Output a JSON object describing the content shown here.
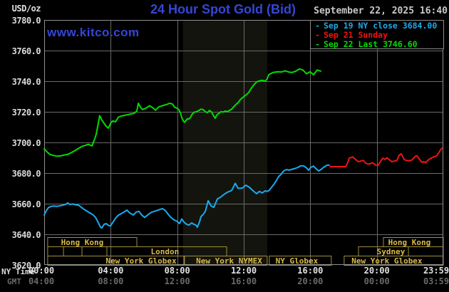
{
  "header": {
    "units_label": "USD/oz",
    "title": "24 Hour Spot Gold (Bid)",
    "datetime": "September 22, 2025 16:40",
    "watermark": "www.kitco.com"
  },
  "chart_data": {
    "type": "line",
    "title": "24 Hour Spot Gold (Bid)",
    "colors": {
      "band": "#14140e",
      "grid": "#696969",
      "frame": "#909090",
      "session_border": "#a08e38",
      "session_text": "#d8ba4a"
    },
    "y_axis": {
      "unit": "USD/oz",
      "min": 3620,
      "max": 3780,
      "step": 20,
      "tick_labels": [
        "3780.0",
        "3760.0",
        "3740.0",
        "3720.0",
        "3700.0",
        "3680.0",
        "3660.0",
        "3640.0",
        "3620.0"
      ]
    },
    "x_axis": {
      "label_row1": "NY Time",
      "label_row2": "GMT",
      "hours_range": [
        0,
        24
      ],
      "ticks_ny": [
        "00:00",
        "04:00",
        "08:00",
        "12:00",
        "16:00",
        "20:00",
        "23:59"
      ],
      "ticks_gmt": [
        "04:00",
        "08:00",
        "12:00",
        "16:00",
        "20:00",
        "00:00",
        "03:59"
      ]
    },
    "highlight_band_hours": [
      8.35,
      13.41
    ],
    "sessions": [
      {
        "row": 1,
        "start": 0.21,
        "end": 5.57,
        "label": "Hong Kong",
        "label_center": 2.29
      },
      {
        "row": 1,
        "start": 20.4,
        "end": 24,
        "label": "Hong Kong",
        "label_center": 21.96
      },
      {
        "row": 2,
        "start": 0.21,
        "end": 10.97,
        "label": "London",
        "label_center": 7.26,
        "dividers": [
          1.16,
          2.27,
          3.77
        ]
      },
      {
        "row": 2,
        "start": 18.9,
        "end": 24,
        "label": "Sydney",
        "label_center": 20.85,
        "dividers": [
          21.9
        ]
      },
      {
        "row": 3,
        "start": 0.21,
        "end": 8.4,
        "label": "New York Globex",
        "label_center": 5.83
      },
      {
        "row": 3,
        "start": 8.44,
        "end": 13.41,
        "label": "New York NYMEX",
        "label_center": 11.12
      },
      {
        "row": 3,
        "start": 13.54,
        "end": 17.27,
        "label": "NY Globex",
        "label_center": 15.19
      },
      {
        "row": 3,
        "start": 18.04,
        "end": 24,
        "label": "New York Globex",
        "label_center": 20.61
      }
    ],
    "series": [
      {
        "id": "sep19",
        "name": "Sep 19 NY close 3684.00",
        "color": "#1aaaee",
        "points": [
          [
            0,
            3652.6
          ],
          [
            0.13,
            3655.5
          ],
          [
            0.26,
            3657.5
          ],
          [
            0.43,
            3658.3
          ],
          [
            0.6,
            3658.5
          ],
          [
            0.77,
            3658.3
          ],
          [
            0.94,
            3658.6
          ],
          [
            1.11,
            3659
          ],
          [
            1.29,
            3659.6
          ],
          [
            1.41,
            3660.5
          ],
          [
            1.54,
            3659.5
          ],
          [
            1.71,
            3659.8
          ],
          [
            1.89,
            3659.3
          ],
          [
            2.06,
            3659
          ],
          [
            2.23,
            3657.7
          ],
          [
            2.4,
            3656.3
          ],
          [
            2.57,
            3655.1
          ],
          [
            2.74,
            3654
          ],
          [
            2.91,
            3653
          ],
          [
            3.09,
            3651
          ],
          [
            3.26,
            3647.5
          ],
          [
            3.39,
            3644.5
          ],
          [
            3.47,
            3644.2
          ],
          [
            3.6,
            3646.5
          ],
          [
            3.73,
            3647
          ],
          [
            3.86,
            3645.8
          ],
          [
            3.99,
            3645.5
          ],
          [
            4.11,
            3647.5
          ],
          [
            4.29,
            3650.5
          ],
          [
            4.46,
            3652.5
          ],
          [
            4.63,
            3653.5
          ],
          [
            4.8,
            3654.5
          ],
          [
            4.97,
            3655.8
          ],
          [
            5.14,
            3654
          ],
          [
            5.36,
            3652.6
          ],
          [
            5.53,
            3654.5
          ],
          [
            5.7,
            3655
          ],
          [
            5.87,
            3652.5
          ],
          [
            6.04,
            3651
          ],
          [
            6.26,
            3653
          ],
          [
            6.47,
            3654.5
          ],
          [
            6.69,
            3655.2
          ],
          [
            6.9,
            3656
          ],
          [
            7.11,
            3656.8
          ],
          [
            7.29,
            3655.5
          ],
          [
            7.46,
            3653
          ],
          [
            7.63,
            3650.9
          ],
          [
            7.8,
            3649.5
          ],
          [
            7.97,
            3648.6
          ],
          [
            8.14,
            3647
          ],
          [
            8.27,
            3650
          ],
          [
            8.4,
            3648
          ],
          [
            8.57,
            3646.5
          ],
          [
            8.7,
            3646
          ],
          [
            8.87,
            3647.5
          ],
          [
            9,
            3646.5
          ],
          [
            9.13,
            3646
          ],
          [
            9.21,
            3644.6
          ],
          [
            9.34,
            3648
          ],
          [
            9.43,
            3651.6
          ],
          [
            9.56,
            3653
          ],
          [
            9.69,
            3655
          ],
          [
            9.86,
            3662
          ],
          [
            10.03,
            3658.6
          ],
          [
            10.2,
            3657.6
          ],
          [
            10.41,
            3663
          ],
          [
            10.63,
            3664.4
          ],
          [
            10.84,
            3666.3
          ],
          [
            11.06,
            3667.7
          ],
          [
            11.27,
            3668.6
          ],
          [
            11.49,
            3673.3
          ],
          [
            11.66,
            3670
          ],
          [
            11.91,
            3670.2
          ],
          [
            12.13,
            3672.1
          ],
          [
            12.34,
            3670.7
          ],
          [
            12.56,
            3668.4
          ],
          [
            12.77,
            3666.5
          ],
          [
            12.94,
            3668
          ],
          [
            13.11,
            3667
          ],
          [
            13.29,
            3668.4
          ],
          [
            13.41,
            3668
          ],
          [
            13.54,
            3668.8
          ],
          [
            13.71,
            3671.2
          ],
          [
            13.84,
            3673
          ],
          [
            13.97,
            3675.3
          ],
          [
            14.1,
            3677.7
          ],
          [
            14.23,
            3679
          ],
          [
            14.4,
            3681.4
          ],
          [
            14.57,
            3682.3
          ],
          [
            14.74,
            3681.9
          ],
          [
            14.91,
            3682.5
          ],
          [
            15.09,
            3683
          ],
          [
            15.26,
            3683.7
          ],
          [
            15.43,
            3684.7
          ],
          [
            15.6,
            3684.7
          ],
          [
            15.77,
            3683.4
          ],
          [
            15.9,
            3681.9
          ],
          [
            16.03,
            3683.7
          ],
          [
            16.2,
            3684.5
          ],
          [
            16.33,
            3683
          ],
          [
            16.5,
            3681.4
          ],
          [
            16.63,
            3682.2
          ],
          [
            16.8,
            3683.7
          ],
          [
            16.97,
            3685
          ],
          [
            17.14,
            3685.2
          ]
        ]
      },
      {
        "id": "sep21",
        "name": "Sep 21 Sunday",
        "color": "#ee1515",
        "points": [
          [
            17.19,
            3684.2
          ],
          [
            18.13,
            3684.2
          ],
          [
            18.26,
            3687
          ],
          [
            18.34,
            3689.7
          ],
          [
            18.56,
            3690.5
          ],
          [
            18.73,
            3688.8
          ],
          [
            18.9,
            3687.4
          ],
          [
            19.07,
            3688
          ],
          [
            19.2,
            3688.2
          ],
          [
            19.33,
            3686.5
          ],
          [
            19.5,
            3685.8
          ],
          [
            19.63,
            3686.3
          ],
          [
            19.76,
            3686.7
          ],
          [
            19.93,
            3685.2
          ],
          [
            20.06,
            3685
          ],
          [
            20.19,
            3687
          ],
          [
            20.36,
            3689.7
          ],
          [
            20.49,
            3689
          ],
          [
            20.61,
            3690
          ],
          [
            20.79,
            3688.4
          ],
          [
            20.91,
            3687.4
          ],
          [
            21.09,
            3688
          ],
          [
            21.21,
            3688.2
          ],
          [
            21.34,
            3691.6
          ],
          [
            21.47,
            3692.6
          ],
          [
            21.64,
            3689
          ],
          [
            21.77,
            3688.2
          ],
          [
            21.94,
            3688
          ],
          [
            22.11,
            3688.5
          ],
          [
            22.33,
            3691
          ],
          [
            22.41,
            3691.4
          ],
          [
            22.54,
            3689.4
          ],
          [
            22.71,
            3687
          ],
          [
            22.84,
            3687.4
          ],
          [
            22.93,
            3686.7
          ],
          [
            23.14,
            3689
          ],
          [
            23.27,
            3689.7
          ],
          [
            23.4,
            3690.5
          ],
          [
            23.57,
            3691
          ],
          [
            23.7,
            3692.8
          ],
          [
            23.83,
            3695.1
          ],
          [
            23.91,
            3696.2
          ]
        ]
      },
      {
        "id": "sep22",
        "name": "Sep 22 Last 3746.60",
        "color": "#00dd00",
        "points": [
          [
            0,
            3695.8
          ],
          [
            0.17,
            3693.8
          ],
          [
            0.34,
            3692.2
          ],
          [
            0.56,
            3691.5
          ],
          [
            0.77,
            3691
          ],
          [
            0.99,
            3691.2
          ],
          [
            1.2,
            3691.8
          ],
          [
            1.41,
            3692.2
          ],
          [
            1.63,
            3693.3
          ],
          [
            1.84,
            3694.6
          ],
          [
            2.06,
            3696.1
          ],
          [
            2.27,
            3697.4
          ],
          [
            2.49,
            3698.1
          ],
          [
            2.66,
            3698.8
          ],
          [
            2.87,
            3697.7
          ],
          [
            3.04,
            3702.3
          ],
          [
            3.13,
            3705.4
          ],
          [
            3.21,
            3710
          ],
          [
            3.34,
            3717.5
          ],
          [
            3.47,
            3714.5
          ],
          [
            3.6,
            3712.5
          ],
          [
            3.73,
            3710.5
          ],
          [
            3.86,
            3709.3
          ],
          [
            3.99,
            3712.4
          ],
          [
            4.11,
            3714
          ],
          [
            4.29,
            3713.5
          ],
          [
            4.46,
            3716.5
          ],
          [
            4.63,
            3717.2
          ],
          [
            4.89,
            3717.8
          ],
          [
            5.14,
            3718.4
          ],
          [
            5.4,
            3719
          ],
          [
            5.57,
            3720.5
          ],
          [
            5.66,
            3725.6
          ],
          [
            5.79,
            3723
          ],
          [
            5.91,
            3721.5
          ],
          [
            6.13,
            3722.4
          ],
          [
            6.34,
            3724
          ],
          [
            6.56,
            3722.4
          ],
          [
            6.69,
            3721
          ],
          [
            6.9,
            3723.3
          ],
          [
            7.11,
            3724
          ],
          [
            7.37,
            3724.8
          ],
          [
            7.54,
            3725.6
          ],
          [
            7.71,
            3725.1
          ],
          [
            7.84,
            3723
          ],
          [
            7.97,
            3722.4
          ],
          [
            8.1,
            3721.4
          ],
          [
            8.19,
            3719.4
          ],
          [
            8.27,
            3716.3
          ],
          [
            8.36,
            3714
          ],
          [
            8.44,
            3713.2
          ],
          [
            8.53,
            3714.3
          ],
          [
            8.61,
            3715.5
          ],
          [
            8.7,
            3715.2
          ],
          [
            8.79,
            3716.3
          ],
          [
            8.91,
            3718.6
          ],
          [
            9.04,
            3719.8
          ],
          [
            9.17,
            3720.1
          ],
          [
            9.3,
            3720.9
          ],
          [
            9.43,
            3721.7
          ],
          [
            9.56,
            3721.4
          ],
          [
            9.69,
            3720.1
          ],
          [
            9.81,
            3719.4
          ],
          [
            9.94,
            3720.9
          ],
          [
            10.07,
            3719.8
          ],
          [
            10.2,
            3717.1
          ],
          [
            10.29,
            3715.8
          ],
          [
            10.37,
            3717.8
          ],
          [
            10.5,
            3719
          ],
          [
            10.63,
            3720.1
          ],
          [
            10.76,
            3719.8
          ],
          [
            10.89,
            3720.5
          ],
          [
            11.01,
            3720.1
          ],
          [
            11.14,
            3720.9
          ],
          [
            11.27,
            3721.7
          ],
          [
            11.4,
            3723.3
          ],
          [
            11.53,
            3724.8
          ],
          [
            11.66,
            3726
          ],
          [
            11.79,
            3727.9
          ],
          [
            11.91,
            3729.1
          ],
          [
            12.04,
            3730.2
          ],
          [
            12.17,
            3731.3
          ],
          [
            12.3,
            3732.6
          ],
          [
            12.43,
            3735
          ],
          [
            12.6,
            3737.5
          ],
          [
            12.77,
            3739.5
          ],
          [
            12.94,
            3740.2
          ],
          [
            13.11,
            3740.6
          ],
          [
            13.29,
            3740
          ],
          [
            13.41,
            3741.5
          ],
          [
            13.5,
            3744.2
          ],
          [
            13.76,
            3745.7
          ],
          [
            14.06,
            3746.2
          ],
          [
            14.27,
            3746
          ],
          [
            14.49,
            3746.8
          ],
          [
            14.7,
            3746
          ],
          [
            14.91,
            3745.7
          ],
          [
            15.13,
            3746.5
          ],
          [
            15.34,
            3748
          ],
          [
            15.56,
            3747.3
          ],
          [
            15.77,
            3744.9
          ],
          [
            15.99,
            3746.2
          ],
          [
            16.2,
            3744.2
          ],
          [
            16.41,
            3747.3
          ],
          [
            16.63,
            3746.6
          ]
        ]
      }
    ]
  }
}
